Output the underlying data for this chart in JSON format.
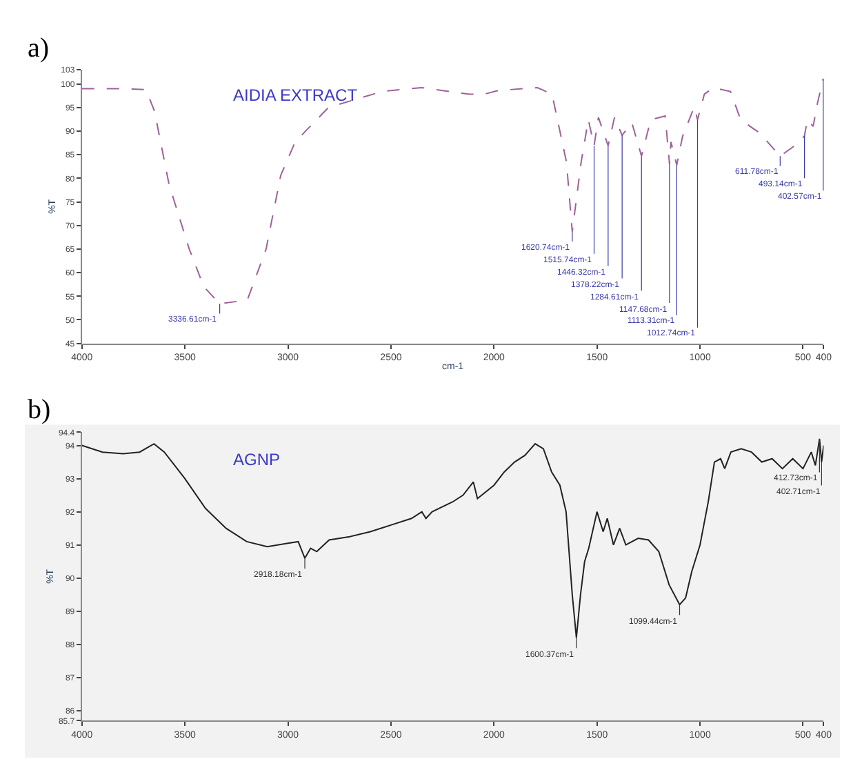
{
  "chart_data": [
    {
      "type": "line",
      "title": "a)",
      "xlabel": "cm-1",
      "ylabel": "%T",
      "xlim": [
        4000,
        400
      ],
      "xticks": [
        4000,
        3500,
        3000,
        2500,
        2000,
        1500,
        1000,
        500,
        400
      ],
      "ylim": [
        45,
        103
      ],
      "yticks": [
        45,
        50,
        55,
        60,
        65,
        70,
        75,
        80,
        85,
        90,
        95,
        100,
        103
      ],
      "grid": false,
      "marker": "none",
      "line_style": "dashed",
      "x": [
        4000,
        3800,
        3690,
        3648,
        3577,
        3479,
        3408,
        3331,
        3197,
        3106,
        3035,
        2965,
        2803,
        2542,
        2352,
        2120,
        2049,
        1979,
        1789,
        1718,
        1648,
        1620,
        1577,
        1542,
        1514,
        1493,
        1446,
        1415,
        1378,
        1331,
        1284,
        1239,
        1169,
        1148,
        1141,
        1113,
        1085,
        1028,
        1012,
        979,
        937,
        852,
        803,
        711,
        611,
        521,
        493,
        479,
        451,
        430,
        402
      ],
      "series": [
        {
          "color": "#a0609a",
          "values": [
            99,
            99,
            98.8,
            94.3,
            78.7,
            65,
            57,
            53.4,
            54.2,
            65,
            80.6,
            87.7,
            95,
            98.4,
            99.2,
            97.8,
            97.8,
            98.6,
            99.2,
            97.8,
            83.4,
            68.7,
            83.4,
            92.4,
            86.9,
            92.9,
            86.9,
            92.9,
            89.1,
            91.8,
            84.7,
            92.4,
            93.2,
            83,
            87.7,
            82.8,
            88.8,
            95.1,
            92.4,
            97.8,
            99.2,
            98.4,
            92.4,
            89.6,
            84.7,
            87.5,
            89,
            92.4,
            91,
            95.9,
            101.1
          ]
        }
      ],
      "annotations": [
        "AIDIA EXTRACT",
        {
          "text": "3336.61cm-1",
          "x": 3331,
          "y": 53.4
        },
        {
          "text": "1620.74cm-1",
          "x": 1620,
          "y": 68.7
        },
        {
          "text": "1515.74cm-1",
          "x": 1514,
          "y": 86.9
        },
        {
          "text": "1446.32cm-1",
          "x": 1446,
          "y": 86.9
        },
        {
          "text": "1378.22cm-1",
          "x": 1378,
          "y": 89.1
        },
        {
          "text": "1284.61cm-1",
          "x": 1284,
          "y": 84.7
        },
        {
          "text": "1147.68cm-1",
          "x": 1148,
          "y": 83
        },
        {
          "text": "1113.31cm-1",
          "x": 1113,
          "y": 82.8
        },
        {
          "text": "1012.74cm-1",
          "x": 1012,
          "y": 92.4
        },
        {
          "text": "611.78cm-1",
          "x": 611,
          "y": 84.7
        },
        {
          "text": "493.14cm-1",
          "x": 493,
          "y": 89
        },
        {
          "text": "402.57cm-1",
          "x": 402,
          "y": 101.1
        }
      ]
    },
    {
      "type": "line",
      "title": "b)",
      "ylabel": "%T",
      "xlim": [
        4000,
        400
      ],
      "xticks": [
        4000,
        3500,
        3000,
        2500,
        2000,
        1500,
        1000,
        500,
        400
      ],
      "ylim": [
        85.7,
        94.4
      ],
      "yticks": [
        85.7,
        86,
        87,
        88,
        89,
        90,
        91,
        92,
        93,
        94,
        94.4
      ],
      "grid": false,
      "marker": "none",
      "line_style": "solid",
      "x": [
        4000,
        3900,
        3800,
        3720,
        3650,
        3600,
        3500,
        3400,
        3300,
        3200,
        3100,
        3000,
        2950,
        2918,
        2890,
        2860,
        2800,
        2700,
        2600,
        2500,
        2400,
        2350,
        2330,
        2300,
        2200,
        2150,
        2100,
        2080,
        2000,
        1950,
        1900,
        1850,
        1800,
        1760,
        1720,
        1680,
        1650,
        1620,
        1600,
        1580,
        1560,
        1540,
        1500,
        1470,
        1450,
        1420,
        1390,
        1360,
        1300,
        1250,
        1200,
        1150,
        1099,
        1070,
        1040,
        1000,
        960,
        930,
        900,
        880,
        850,
        800,
        750,
        700,
        650,
        600,
        550,
        500,
        460,
        440,
        420,
        410,
        400
      ],
      "series": [
        {
          "color": "#222222",
          "values": [
            94.0,
            93.8,
            93.75,
            93.8,
            94.05,
            93.8,
            93.0,
            92.1,
            91.5,
            91.1,
            90.95,
            91.05,
            91.1,
            90.6,
            90.9,
            90.8,
            91.15,
            91.25,
            91.4,
            91.6,
            91.8,
            92.0,
            91.8,
            92.0,
            92.3,
            92.5,
            92.9,
            92.4,
            92.8,
            93.2,
            93.5,
            93.7,
            94.05,
            93.9,
            93.2,
            92.8,
            92.0,
            89.5,
            88.2,
            89.5,
            90.5,
            90.9,
            92.0,
            91.4,
            91.8,
            91.0,
            91.5,
            91.0,
            91.2,
            91.15,
            90.8,
            89.8,
            89.2,
            89.4,
            90.2,
            91.0,
            92.3,
            93.5,
            93.6,
            93.3,
            93.8,
            93.9,
            93.8,
            93.5,
            93.6,
            93.3,
            93.6,
            93.3,
            93.8,
            93.4,
            94.2,
            93.5,
            94.0
          ]
        }
      ],
      "annotations": [
        "AGNP",
        {
          "text": "2918.18cm-1",
          "x": 2918,
          "y": 90.6
        },
        {
          "text": "1600.37cm-1",
          "x": 1600,
          "y": 88.2
        },
        {
          "text": "1099.44cm-1",
          "x": 1099,
          "y": 89.2
        },
        {
          "text": "412.73cm-1",
          "x": 420,
          "y": 94.2
        },
        {
          "text": "402.71cm-1",
          "x": 410,
          "y": 93.5
        }
      ]
    }
  ]
}
